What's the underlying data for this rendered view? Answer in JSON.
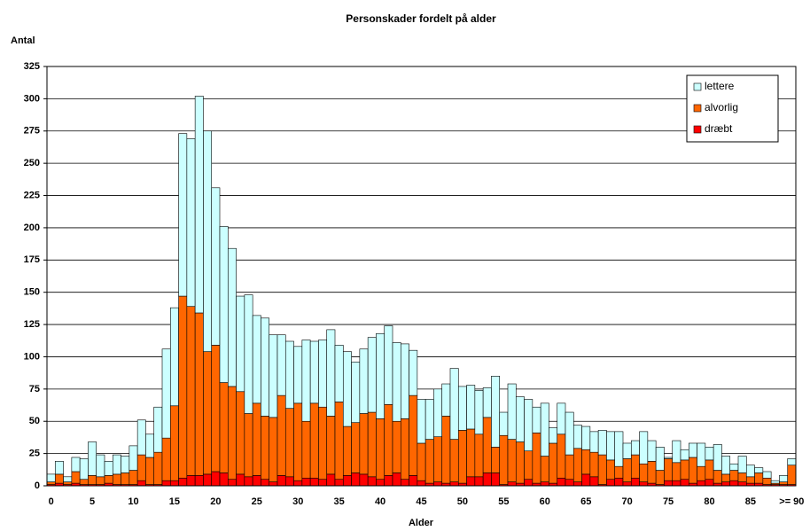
{
  "chart_data": {
    "type": "stacked-bar",
    "title": "Personskader fordelt på alder",
    "ylabel": "Antal",
    "xlabel": "Alder",
    "categories": [
      0,
      null,
      null,
      null,
      null,
      5,
      null,
      null,
      null,
      null,
      10,
      null,
      null,
      null,
      null,
      15,
      null,
      null,
      null,
      null,
      20,
      null,
      null,
      null,
      null,
      25,
      null,
      null,
      null,
      null,
      30,
      null,
      null,
      null,
      null,
      35,
      null,
      null,
      null,
      null,
      40,
      null,
      null,
      null,
      null,
      45,
      null,
      null,
      null,
      null,
      50,
      null,
      null,
      null,
      null,
      55,
      null,
      null,
      null,
      null,
      60,
      null,
      null,
      null,
      null,
      65,
      null,
      null,
      null,
      null,
      70,
      null,
      null,
      null,
      null,
      75,
      null,
      null,
      null,
      null,
      80,
      null,
      null,
      null,
      null,
      85,
      null,
      null,
      null,
      null,
      ">= 90"
    ],
    "series": [
      {
        "name": "lettere",
        "color": "#ccffff",
        "values": [
          6,
          10,
          4,
          11,
          16,
          26,
          17,
          11,
          15,
          13,
          19,
          27,
          18,
          35,
          69,
          76,
          126,
          130,
          168,
          171,
          122,
          121,
          107,
          74,
          92,
          68,
          76,
          64,
          47,
          52,
          44,
          63,
          48,
          52,
          67,
          44,
          58,
          47,
          50,
          58,
          66,
          61,
          61,
          58,
          35,
          34,
          31,
          37,
          25,
          55,
          34,
          34,
          34,
          23,
          55,
          18,
          43,
          35,
          40,
          20,
          41,
          12,
          24,
          33,
          18,
          18,
          16,
          19,
          22,
          27,
          12,
          11,
          25,
          16,
          18,
          1,
          17,
          8,
          11,
          18,
          10,
          20,
          14,
          5,
          13,
          9,
          4,
          5,
          2,
          5,
          5
        ]
      },
      {
        "name": "alvorlig",
        "color": "#ff6600",
        "values": [
          2,
          7,
          2,
          9,
          4,
          7,
          6,
          6,
          8,
          9,
          11,
          20,
          21,
          25,
          33,
          58,
          141,
          131,
          126,
          95,
          98,
          70,
          72,
          64,
          49,
          56,
          49,
          50,
          62,
          53,
          60,
          44,
          58,
          56,
          45,
          60,
          38,
          39,
          47,
          50,
          47,
          55,
          40,
          47,
          62,
          29,
          34,
          35,
          52,
          33,
          41,
          37,
          33,
          43,
          20,
          38,
          33,
          32,
          22,
          39,
          20,
          31,
          34,
          19,
          26,
          19,
          19,
          23,
          15,
          9,
          18,
          18,
          14,
          17,
          11,
          17,
          14,
          15,
          20,
          11,
          15,
          10,
          6,
          8,
          7,
          5,
          8,
          5,
          1,
          2,
          15
        ]
      },
      {
        "name": "dræbt",
        "color": "#ff0000",
        "values": [
          1,
          2,
          1,
          2,
          1,
          1,
          1,
          2,
          1,
          1,
          1,
          4,
          1,
          1,
          4,
          4,
          6,
          8,
          8,
          9,
          11,
          10,
          5,
          9,
          7,
          8,
          5,
          3,
          8,
          7,
          4,
          6,
          6,
          5,
          9,
          5,
          8,
          10,
          9,
          7,
          5,
          8,
          10,
          5,
          8,
          4,
          2,
          3,
          2,
          3,
          2,
          7,
          7,
          10,
          10,
          1,
          3,
          2,
          5,
          2,
          3,
          2,
          6,
          5,
          3,
          9,
          7,
          1,
          5,
          6,
          3,
          6,
          3,
          2,
          1,
          4,
          4,
          5,
          2,
          4,
          5,
          2,
          3,
          4,
          3,
          2,
          2,
          1,
          1,
          1,
          1
        ]
      }
    ],
    "ylim": [
      0,
      325
    ],
    "yticks": [
      0,
      25,
      50,
      75,
      100,
      125,
      150,
      175,
      200,
      225,
      250,
      275,
      300,
      325
    ],
    "grid": true,
    "legend": "top-right"
  }
}
